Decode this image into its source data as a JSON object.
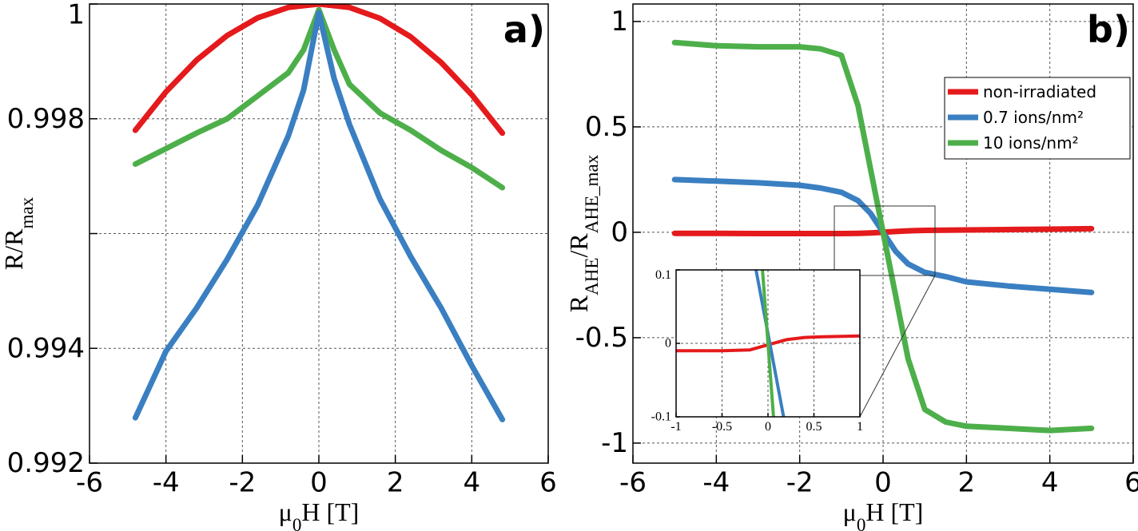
{
  "chart_data": [
    {
      "type": "line",
      "panel_label": "a)",
      "xlabel": [
        {
          "text": "μ"
        },
        {
          "text": "0",
          "subscript": true
        },
        {
          "text": "H [T]"
        }
      ],
      "ylabel": [
        {
          "text": "R/R"
        },
        {
          "text": "max",
          "subscript": true
        }
      ],
      "xlim": [
        -6,
        6
      ],
      "xticks": [
        -6,
        -4,
        -2,
        0,
        2,
        4,
        6
      ],
      "ylim": [
        0.992,
        1.0
      ],
      "yticks": [
        0.992,
        0.994,
        0.998,
        1
      ],
      "minor_yticks": [
        0.996
      ],
      "grid": true,
      "series": [
        {
          "color": "#e41a1c",
          "x": [
            -4.8,
            -4,
            -3.2,
            -2.4,
            -1.6,
            -0.8,
            0,
            0.8,
            1.6,
            2.4,
            3.2,
            4,
            4.8
          ],
          "values": [
            0.9978,
            0.99847,
            0.99902,
            0.99945,
            0.99976,
            0.99994,
            1.0,
            0.99994,
            0.99975,
            0.99943,
            0.99898,
            0.99842,
            0.99775
          ]
        },
        {
          "color": "#4daf4a",
          "x": [
            -4.8,
            -4,
            -3.2,
            -2.4,
            -1.6,
            -0.8,
            -0.4,
            0,
            0.4,
            0.8,
            1.6,
            2.4,
            3.2,
            4,
            4.8
          ],
          "values": [
            0.99721,
            0.99748,
            0.99775,
            0.998,
            0.9984,
            0.9988,
            0.9992,
            0.9999,
            0.9992,
            0.9986,
            0.9981,
            0.9978,
            0.99745,
            0.99715,
            0.9968
          ]
        },
        {
          "color": "#3a7fc1",
          "x": [
            -4.8,
            -4,
            -3.2,
            -2.4,
            -1.6,
            -0.8,
            -0.4,
            0,
            0.4,
            0.8,
            1.6,
            2.4,
            3.2,
            4,
            4.8
          ],
          "values": [
            0.99279,
            0.99395,
            0.9947,
            0.99555,
            0.9965,
            0.9977,
            0.9985,
            0.99985,
            0.9987,
            0.9979,
            0.9966,
            0.9956,
            0.9947,
            0.9937,
            0.99276
          ]
        }
      ]
    },
    {
      "type": "line",
      "panel_label": "b)",
      "legend": "upper right",
      "xlabel": [
        {
          "text": "μ"
        },
        {
          "text": "0",
          "subscript": true
        },
        {
          "text": "H [T]"
        }
      ],
      "ylabel": [
        {
          "text": "R"
        },
        {
          "text": "AHE",
          "subscript": true
        },
        {
          "text": "/R"
        },
        {
          "text": "AHE_max",
          "subscript": true
        }
      ],
      "xlim": [
        -6,
        6
      ],
      "xticks": [
        -6,
        -4,
        -2,
        0,
        2,
        4,
        6
      ],
      "ylim": [
        -1.095,
        1.083
      ],
      "yticks": [
        -1,
        -0.5,
        0,
        0.5,
        1
      ],
      "grid": true,
      "series": [
        {
          "name": "non-irradiated",
          "color": "#e41a1c",
          "x": [
            -5,
            -4,
            -3,
            -2,
            -1.5,
            -1,
            -0.6,
            -0.3,
            0,
            0.3,
            0.6,
            1,
            1.5,
            2,
            3,
            4,
            5
          ],
          "values": [
            -0.005,
            -0.005,
            -0.006,
            -0.006,
            -0.006,
            -0.006,
            -0.005,
            -0.003,
            0,
            0.004,
            0.007,
            0.009,
            0.01,
            0.011,
            0.013,
            0.015,
            0.017
          ]
        },
        {
          "name": "0.7 ions/nm²",
          "color": "#3a7fc1",
          "x": [
            -5,
            -4,
            -3,
            -2,
            -1.5,
            -1,
            -0.6,
            -0.3,
            0,
            0.3,
            0.6,
            1,
            1.5,
            2,
            3,
            4,
            5
          ],
          "values": [
            0.25,
            0.243,
            0.235,
            0.223,
            0.21,
            0.19,
            0.15,
            0.09,
            0,
            -0.09,
            -0.15,
            -0.19,
            -0.21,
            -0.235,
            -0.255,
            -0.27,
            -0.285
          ]
        },
        {
          "name": "10 ions/nm²",
          "color": "#4daf4a",
          "x": [
            -5,
            -4,
            -3,
            -2,
            -1.5,
            -1,
            -0.6,
            -0.3,
            0,
            0.3,
            0.6,
            1,
            1.5,
            2,
            3,
            4,
            5
          ],
          "values": [
            0.9,
            0.885,
            0.88,
            0.88,
            0.87,
            0.84,
            0.6,
            0.3,
            0,
            -0.3,
            -0.6,
            -0.84,
            -0.9,
            -0.92,
            -0.93,
            -0.94,
            -0.93
          ]
        }
      ]
    },
    {
      "type": "line",
      "xlim": [
        -1,
        1
      ],
      "xticks": [
        -1,
        -0.5,
        0,
        0.5,
        1
      ],
      "ylim": [
        -0.1,
        0.1
      ],
      "yticks": [
        -0.1,
        0,
        0.1
      ],
      "grid": true,
      "series": [
        {
          "color": "#e41a1c",
          "x": [
            -1,
            -0.5,
            -0.2,
            0,
            0.2,
            0.4,
            0.6,
            1
          ],
          "values": [
            -0.01,
            -0.01,
            -0.009,
            -0.002,
            0.005,
            0.008,
            0.009,
            0.01
          ]
        },
        {
          "color": "#3a7fc1",
          "x": [
            -0.13,
            0.02,
            0.17
          ],
          "values": [
            0.1,
            0,
            -0.1
          ]
        },
        {
          "color": "#4daf4a",
          "x": [
            -0.06,
            0,
            0.06
          ],
          "values": [
            0.1,
            0,
            -0.1
          ]
        }
      ]
    }
  ]
}
